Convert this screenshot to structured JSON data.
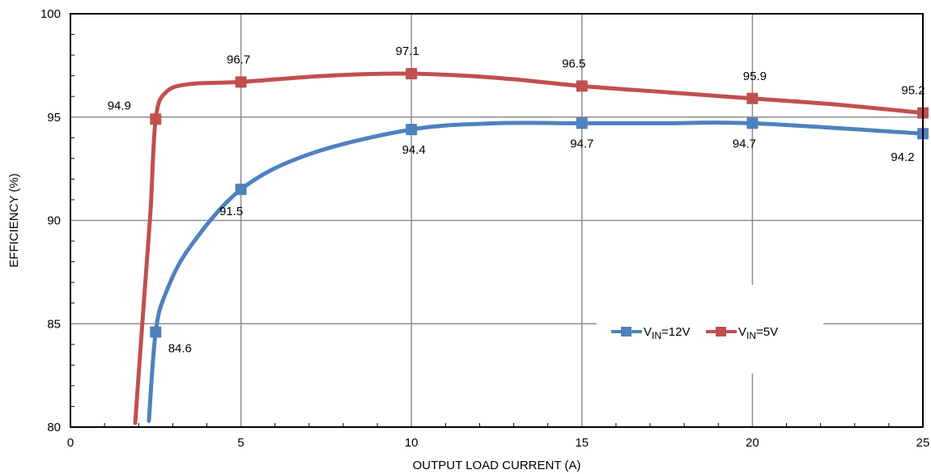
{
  "chart_data": {
    "type": "line",
    "title": "",
    "xlabel": "OUTPUT LOAD CURRENT  (A)",
    "ylabel": "EFFICIENCY (%)",
    "xlim": [
      0,
      25
    ],
    "ylim": [
      80,
      100
    ],
    "xticks": [
      0,
      5,
      10,
      15,
      20,
      25
    ],
    "yticks": [
      80,
      85,
      90,
      95,
      100
    ],
    "grid": true,
    "legend_position": "lower-right",
    "series": [
      {
        "name_main": "V",
        "name_sub": "IN",
        "name_suffix": "=12V",
        "color": "#4f81bd",
        "curve": [
          [
            2.3,
            80.3
          ],
          [
            2.5,
            84.6
          ],
          [
            2.8,
            86.5
          ],
          [
            3.5,
            88.7
          ],
          [
            5,
            91.5
          ],
          [
            7,
            93.2
          ],
          [
            10,
            94.4
          ],
          [
            12.5,
            94.7
          ],
          [
            15,
            94.7
          ],
          [
            17.5,
            94.7
          ],
          [
            20,
            94.7
          ],
          [
            25,
            94.2
          ]
        ],
        "points": [
          [
            2.5,
            84.6
          ],
          [
            5,
            91.5
          ],
          [
            10,
            94.4
          ],
          [
            15,
            94.7
          ],
          [
            20,
            94.7
          ],
          [
            25,
            94.2
          ]
        ],
        "labels": [
          "84.6",
          "91.5",
          "94.4",
          "94.7",
          "94.7",
          "94.2"
        ]
      },
      {
        "name_main": "V",
        "name_sub": "IN",
        "name_suffix": "=5V",
        "color": "#c0504d",
        "curve": [
          [
            1.9,
            80.2
          ],
          [
            2.15,
            86
          ],
          [
            2.35,
            90.5
          ],
          [
            2.5,
            94.9
          ],
          [
            2.8,
            96.2
          ],
          [
            3.5,
            96.6
          ],
          [
            5,
            96.7
          ],
          [
            7.5,
            97.0
          ],
          [
            10,
            97.1
          ],
          [
            12.5,
            96.9
          ],
          [
            15,
            96.5
          ],
          [
            17.5,
            96.2
          ],
          [
            20,
            95.9
          ],
          [
            22.5,
            95.6
          ],
          [
            25,
            95.2
          ]
        ],
        "points": [
          [
            2.5,
            94.9
          ],
          [
            5,
            96.7
          ],
          [
            10,
            97.1
          ],
          [
            15,
            96.5
          ],
          [
            20,
            95.9
          ],
          [
            25,
            95.2
          ]
        ],
        "labels": [
          "94.9",
          "96.7",
          "97.1",
          "96.5",
          "95.9",
          "95.2"
        ]
      }
    ]
  }
}
